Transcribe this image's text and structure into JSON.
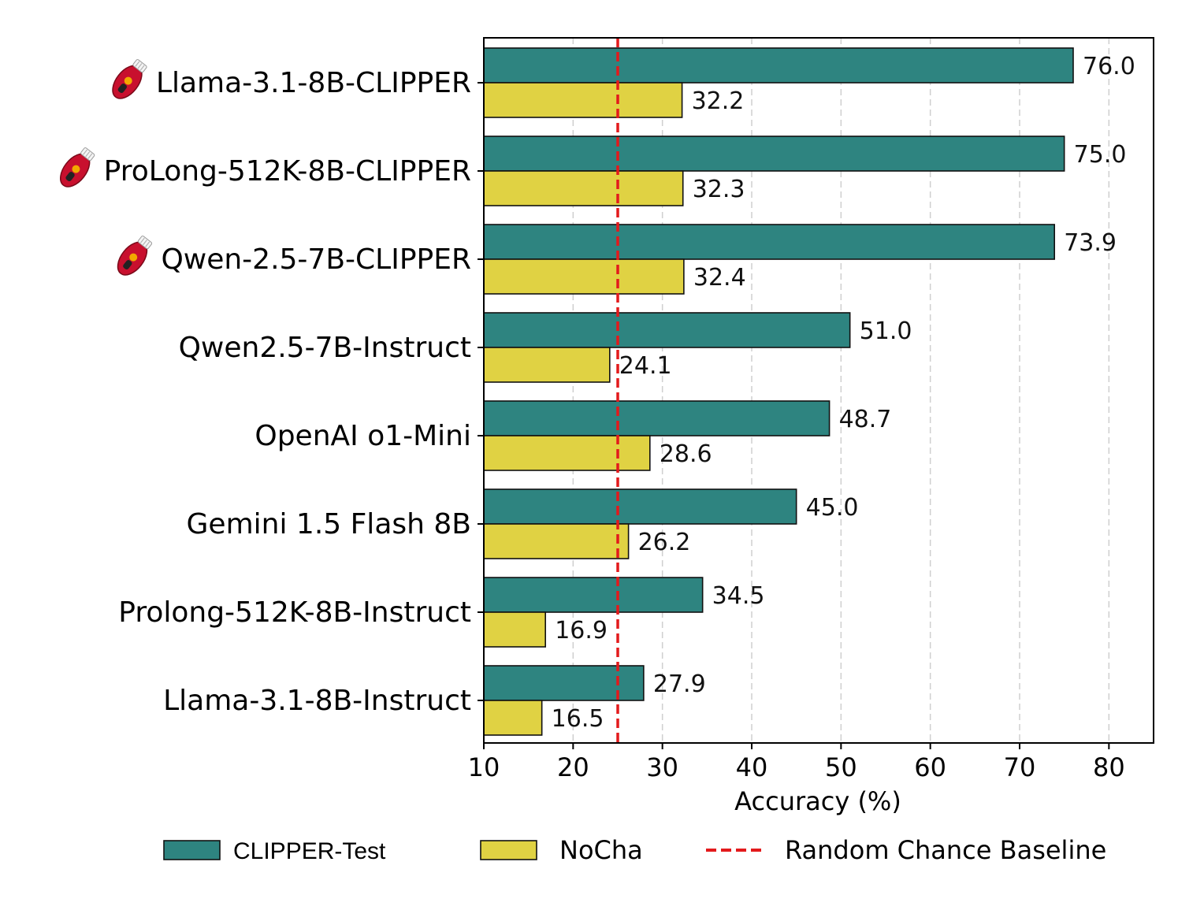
{
  "chart_data": {
    "type": "bar",
    "orientation": "horizontal",
    "categories": [
      "Llama-3.1-8B-CLIPPER",
      "ProLong-512K-8B-CLIPPER",
      "Qwen-2.5-7B-CLIPPER",
      "Qwen2.5-7B-Instruct",
      "OpenAI o1-Mini",
      "Gemini 1.5 Flash 8B",
      "Prolong-512K-8B-Instruct",
      "Llama-3.1-8B-Instruct"
    ],
    "category_icons": [
      "clipper-icon",
      "clipper-icon",
      "clipper-icon",
      "",
      "",
      "",
      "",
      ""
    ],
    "series": [
      {
        "name": "CLIPPER-Test",
        "color": "#2e8480",
        "values": [
          76.0,
          75.0,
          73.9,
          51.0,
          48.7,
          45.0,
          34.5,
          27.9
        ]
      },
      {
        "name": "NoCha",
        "color": "#e0d243",
        "values": [
          32.2,
          32.3,
          32.4,
          24.1,
          28.6,
          26.2,
          16.9,
          16.5
        ]
      }
    ],
    "value_labels": {
      "CLIPPER-Test": [
        "76.0",
        "75.0",
        "73.9",
        "51.0",
        "48.7",
        "45.0",
        "34.5",
        "27.9"
      ],
      "NoCha": [
        "32.2",
        "32.3",
        "32.4",
        "24.1",
        "28.6",
        "26.2",
        "16.9",
        "16.5"
      ]
    },
    "reference_line": {
      "name": "Random Chance Baseline",
      "value": 25,
      "color": "#e31a1c",
      "style": "dashed"
    },
    "xlabel": "Accuracy (%)",
    "ylabel": "",
    "title": "",
    "xlim": [
      10,
      85
    ],
    "xticks": [
      10,
      20,
      30,
      40,
      50,
      60,
      70,
      80
    ],
    "xtick_labels": [
      "10",
      "20",
      "30",
      "40",
      "50",
      "60",
      "70",
      "80"
    ],
    "grid": {
      "x": true,
      "y": false,
      "style": "dashed"
    },
    "legend_position": "bottom"
  }
}
